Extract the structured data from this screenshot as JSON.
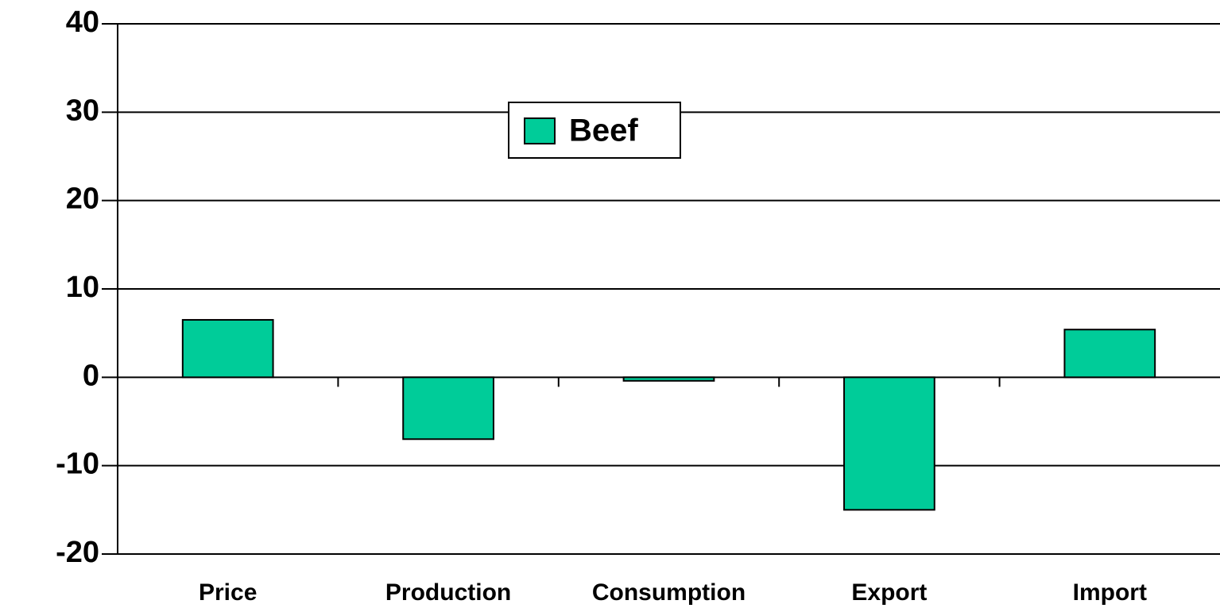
{
  "chart_data": {
    "type": "bar",
    "categories": [
      "Price",
      "Production",
      "Consumption",
      "Export",
      "Import"
    ],
    "series": [
      {
        "name": "Beef",
        "color": "#00cc99",
        "values": [
          6.5,
          -7,
          -0.4,
          -15,
          5.4
        ]
      }
    ],
    "ylim": [
      -20,
      40
    ],
    "yticks": [
      -20,
      -10,
      0,
      10,
      20,
      30,
      40
    ],
    "grid": true
  }
}
